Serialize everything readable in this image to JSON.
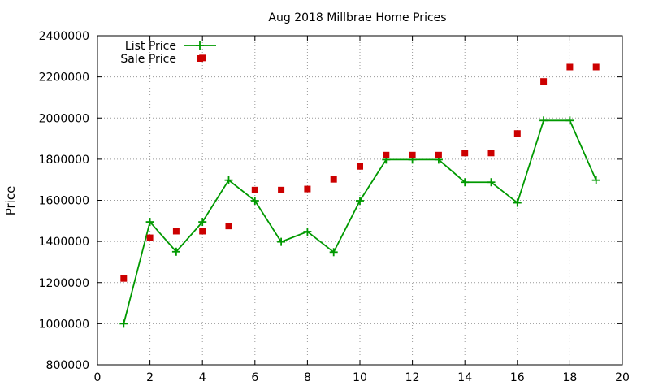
{
  "chart_data": {
    "type": "line",
    "title": "Aug 2018 Millbrae Home Prices",
    "xlabel": "",
    "ylabel": "Price",
    "xlim": [
      0,
      20
    ],
    "ylim": [
      800000,
      2400000
    ],
    "xticks": [
      0,
      2,
      4,
      6,
      8,
      10,
      12,
      14,
      16,
      18,
      20
    ],
    "yticks": [
      800000,
      1000000,
      1200000,
      1400000,
      1600000,
      1800000,
      2000000,
      2200000,
      2400000
    ],
    "grid": true,
    "legend": "top-left",
    "series": [
      {
        "name": "List Price",
        "style": "line-plus",
        "color": "#009900",
        "x": [
          1,
          2,
          3,
          4,
          5,
          6,
          7,
          8,
          9,
          10,
          11,
          12,
          13,
          14,
          15,
          16,
          17,
          18,
          19
        ],
        "y": [
          1000000,
          1495000,
          1350000,
          1495000,
          1698000,
          1598000,
          1398000,
          1448000,
          1348000,
          1598000,
          1798000,
          1798000,
          1798000,
          1688000,
          1688000,
          1588000,
          1988000,
          1988000,
          1698000
        ]
      },
      {
        "name": "Sale Price",
        "style": "square",
        "color": "#cc0000",
        "x": [
          1,
          2,
          3,
          4,
          4,
          5,
          6,
          7,
          8,
          9,
          10,
          11,
          12,
          13,
          14,
          15,
          16,
          17,
          18,
          19
        ],
        "y": [
          1220000,
          1418000,
          1450000,
          1450000,
          2292000,
          1475000,
          1650000,
          1650000,
          1655000,
          1702000,
          1765000,
          1820000,
          1820000,
          1820000,
          1830000,
          1830000,
          1925000,
          2178000,
          2248000,
          2248000
        ]
      }
    ]
  }
}
